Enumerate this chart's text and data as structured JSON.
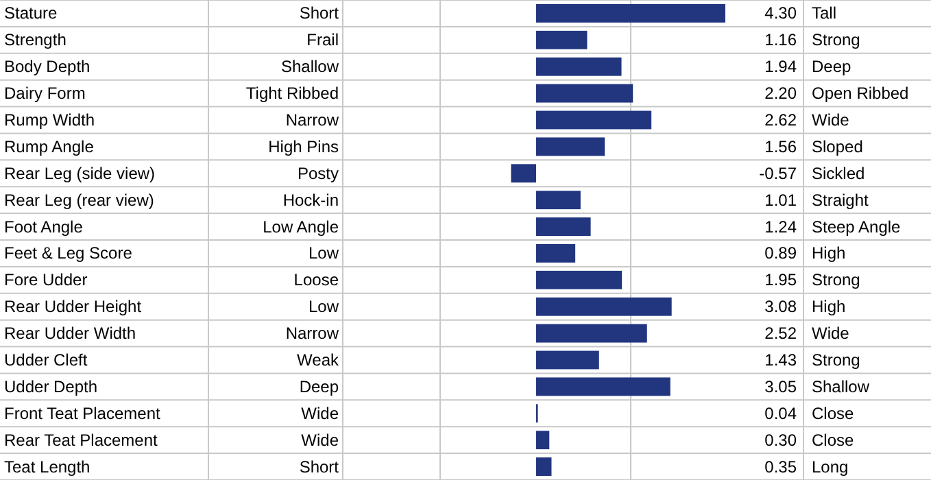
{
  "chart_data": {
    "type": "bar",
    "orientation": "horizontal",
    "color": "#22367f",
    "categories": [
      "Stature",
      "Strength",
      "Body Depth",
      "Dairy Form",
      "Rump Width",
      "Rump Angle",
      "Rear Leg (side view)",
      "Rear Leg (rear view)",
      "Foot Angle",
      "Feet & Leg Score",
      "Fore Udder",
      "Rear Udder Height",
      "Rear Udder Width",
      "Udder Cleft",
      "Udder Depth",
      "Front Teat Placement",
      "Rear Teat Placement",
      "Teat Length"
    ],
    "values": [
      4.3,
      1.16,
      1.94,
      2.2,
      2.62,
      1.56,
      -0.57,
      1.01,
      1.24,
      0.89,
      1.95,
      3.08,
      2.52,
      1.43,
      3.05,
      0.04,
      0.3,
      0.35
    ],
    "value_labels": [
      "4.30",
      "1.16",
      "1.94",
      "2.20",
      "2.62",
      "1.56",
      "-0.57",
      "1.01",
      "1.24",
      "0.89",
      "1.95",
      "3.08",
      "2.52",
      "1.43",
      "3.05",
      "0.04",
      "0.30",
      "0.35"
    ],
    "annotations": [
      "Short",
      "Tall",
      "Frail",
      "Strong",
      "Shallow",
      "Deep",
      "Tight Ribbed",
      "Open Ribbed",
      "Narrow",
      "Wide",
      "High Pins",
      "Sloped",
      "Posty",
      "Sickled",
      "Hock-in",
      "Straight",
      "Low Angle",
      "Steep Angle",
      "Low",
      "High",
      "Loose",
      "Strong",
      "Low",
      "High",
      "Narrow",
      "Wide",
      "Weak",
      "Strong",
      "Deep",
      "Shallow",
      "Wide",
      "Close",
      "Wide",
      "Close",
      "Short",
      "Long"
    ]
  }
}
